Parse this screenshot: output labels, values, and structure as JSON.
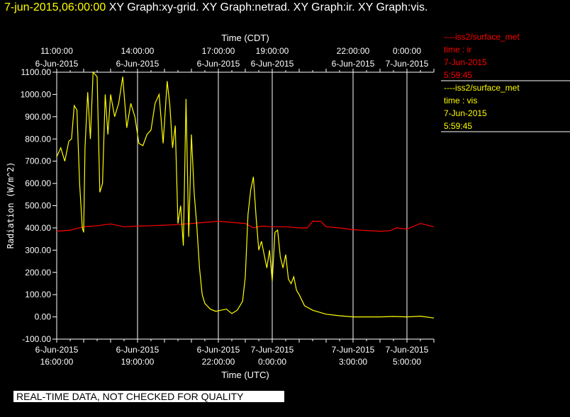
{
  "header": {
    "timestamp": "7-jun-2015,06:00:00",
    "graphs": "XY Graph:xy-grid.  XY Graph:netrad.  XY Graph:ir.  XY Graph:vis."
  },
  "footer": {
    "notice": "REAL-TIME DATA, NOT CHECKED FOR QUALITY"
  },
  "legend": [
    {
      "line": "----iss2/surface_met",
      "var": "time : ir",
      "date": "7-Jun-2015",
      "time": "5:59:45",
      "color": "#ff0000"
    },
    {
      "line": "----iss2/surface_met",
      "var": "time : vis",
      "date": "7-Jun-2015",
      "time": "5:59:45",
      "color": "#ffff00"
    }
  ],
  "chart_data": {
    "type": "line",
    "ylabel": "Radiation (W/m^2)",
    "xlabel_bottom": "Time (UTC)",
    "xlabel_top": "Time (CDT)",
    "ylim": [
      -100,
      1100
    ],
    "yticks": [
      "-100.00",
      "0.00",
      "100.00",
      "200.00",
      "300.00",
      "400.00",
      "500.00",
      "600.00",
      "700.00",
      "800.00",
      "900.00",
      "1000.00",
      "1100.00"
    ],
    "x_range_utc_hours": [
      16.0,
      30.0
    ],
    "top_ticks": [
      {
        "t": 16.0,
        "time": "11:00:00",
        "date": "6-Jun-2015"
      },
      {
        "t": 19.0,
        "time": "14:00:00",
        "date": "6-Jun-2015"
      },
      {
        "t": 22.0,
        "time": "17:00:00",
        "date": "6-Jun-2015"
      },
      {
        "t": 24.0,
        "time": "19:00:00",
        "date": "6-Jun-2015"
      },
      {
        "t": 27.0,
        "time": "22:00:00",
        "date": "6-Jun-2015"
      },
      {
        "t": 29.0,
        "time": "0:00:00",
        "date": "7-Jun-2015"
      }
    ],
    "bottom_ticks": [
      {
        "t": 16.0,
        "date": "6-Jun-2015",
        "time": "16:00:00"
      },
      {
        "t": 19.0,
        "date": "6-Jun-2015",
        "time": "19:00:00"
      },
      {
        "t": 22.0,
        "date": "6-Jun-2015",
        "time": "22:00:00"
      },
      {
        "t": 24.0,
        "date": "7-Jun-2015",
        "time": "0:00:00"
      },
      {
        "t": 27.0,
        "date": "7-Jun-2015",
        "time": "3:00:00"
      },
      {
        "t": 29.0,
        "date": "7-Jun-2015",
        "time": "5:00:00"
      }
    ],
    "series": [
      {
        "color": "#ff0000",
        "x": [
          16.0,
          16.5,
          17.0,
          17.5,
          18.0,
          18.5,
          19.0,
          19.5,
          20.0,
          20.5,
          21.0,
          21.5,
          22.0,
          22.5,
          23.0,
          23.3,
          23.6,
          24.0,
          24.5,
          25.0,
          25.3,
          25.5,
          25.8,
          26.0,
          26.5,
          27.0,
          27.5,
          28.0,
          28.4,
          28.6,
          29.0,
          29.5,
          30.0
        ],
        "y": [
          385,
          390,
          405,
          410,
          418,
          405,
          408,
          410,
          412,
          415,
          420,
          425,
          430,
          425,
          420,
          400,
          408,
          405,
          405,
          400,
          400,
          430,
          430,
          405,
          400,
          392,
          388,
          385,
          388,
          400,
          395,
          420,
          405
        ]
      },
      {
        "color": "#ffff00",
        "x": [
          16.0,
          16.15,
          16.3,
          16.45,
          16.55,
          16.65,
          16.75,
          16.85,
          16.95,
          17.0,
          17.05,
          17.15,
          17.25,
          17.35,
          17.5,
          17.6,
          17.7,
          17.8,
          17.9,
          18.0,
          18.15,
          18.3,
          18.45,
          18.6,
          18.75,
          18.9,
          19.05,
          19.2,
          19.35,
          19.5,
          19.65,
          19.8,
          19.95,
          20.1,
          20.2,
          20.3,
          20.4,
          20.5,
          20.6,
          20.7,
          20.8,
          20.9,
          21.0,
          21.1,
          21.2,
          21.3,
          21.4,
          21.5,
          21.7,
          21.9,
          22.1,
          22.3,
          22.5,
          22.7,
          22.9,
          23.0,
          23.1,
          23.2,
          23.3,
          23.4,
          23.5,
          23.6,
          23.7,
          23.8,
          23.9,
          24.0,
          24.1,
          24.2,
          24.3,
          24.4,
          24.5,
          24.6,
          24.7,
          24.8,
          24.9,
          25.0,
          25.2,
          25.5,
          26.0,
          26.5,
          27.0,
          27.5,
          28.0,
          28.5,
          29.0,
          29.5,
          30.0
        ],
        "y": [
          720,
          760,
          700,
          790,
          800,
          950,
          930,
          600,
          400,
          380,
          760,
          1010,
          800,
          1100,
          1080,
          560,
          600,
          1000,
          820,
          1000,
          900,
          960,
          1080,
          850,
          960,
          900,
          780,
          770,
          820,
          840,
          960,
          1000,
          780,
          1060,
          950,
          760,
          860,
          420,
          500,
          320,
          980,
          360,
          820,
          560,
          410,
          220,
          100,
          60,
          35,
          25,
          30,
          35,
          15,
          30,
          70,
          180,
          460,
          570,
          630,
          450,
          300,
          340,
          280,
          220,
          300,
          160,
          380,
          390,
          270,
          220,
          280,
          170,
          150,
          180,
          120,
          100,
          50,
          30,
          12,
          5,
          0,
          0,
          0,
          2,
          0,
          3,
          -5
        ]
      }
    ]
  }
}
